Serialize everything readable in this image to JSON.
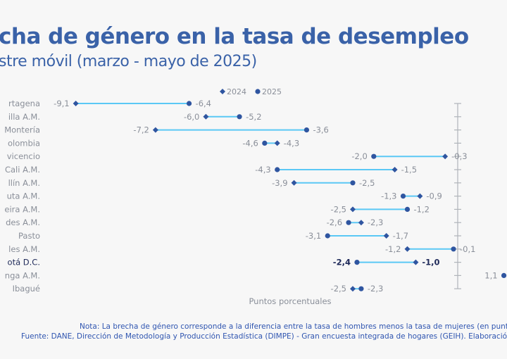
{
  "title": "cha de género en la tasa de desempleo",
  "subtitle": "stre móvil (marzo - mayo de 2025)",
  "note": "Nota: La brecha de género corresponde a la diferencia entre la tasa de hombres menos la tasa de mujeres (en puntos",
  "source": "Fuente: DANE, Dirección de Metodología y Producción Estadística (DIMPE) - Gran encuesta integrada de hogares (GEIH). Elaboración",
  "colors": {
    "title": "#3a62a8",
    "line": "#5bc8f5",
    "marker": "#2f55a0",
    "label": "#8a8f99",
    "highlight": "#1f2a5a"
  },
  "chart_data": {
    "type": "dumbbell",
    "xlabel": "Puntos porcentuales",
    "legend": {
      "placement": "top",
      "entries": [
        {
          "name": "2024",
          "marker": "diamond"
        },
        {
          "name": "2025",
          "marker": "circle"
        }
      ]
    },
    "highlight_category": "otá D.C.",
    "categories": [
      "rtagena",
      "illa A.M.",
      "Montería",
      "olombia",
      "vicencio",
      "Cali A.M.",
      "llín A.M.",
      "uta A.M.",
      "eira A.M.",
      "des A.M.",
      "Pasto",
      "les A.M.",
      "otá D.C.",
      "nga A.M.",
      "Ibagué"
    ],
    "series": [
      {
        "name": "2024",
        "values": [
          -9.1,
          -6.0,
          -7.2,
          -4.3,
          -0.3,
          -1.5,
          -3.9,
          -0.9,
          -2.5,
          -2.3,
          -1.7,
          -1.2,
          -1.0,
          null,
          -2.5
        ]
      },
      {
        "name": "2025",
        "values": [
          -6.4,
          -5.2,
          -3.6,
          -4.6,
          -2.0,
          -4.3,
          -2.5,
          -1.3,
          -1.2,
          -2.6,
          -3.1,
          -0.1,
          -2.4,
          1.1,
          -2.3
        ]
      }
    ],
    "grid": false
  }
}
